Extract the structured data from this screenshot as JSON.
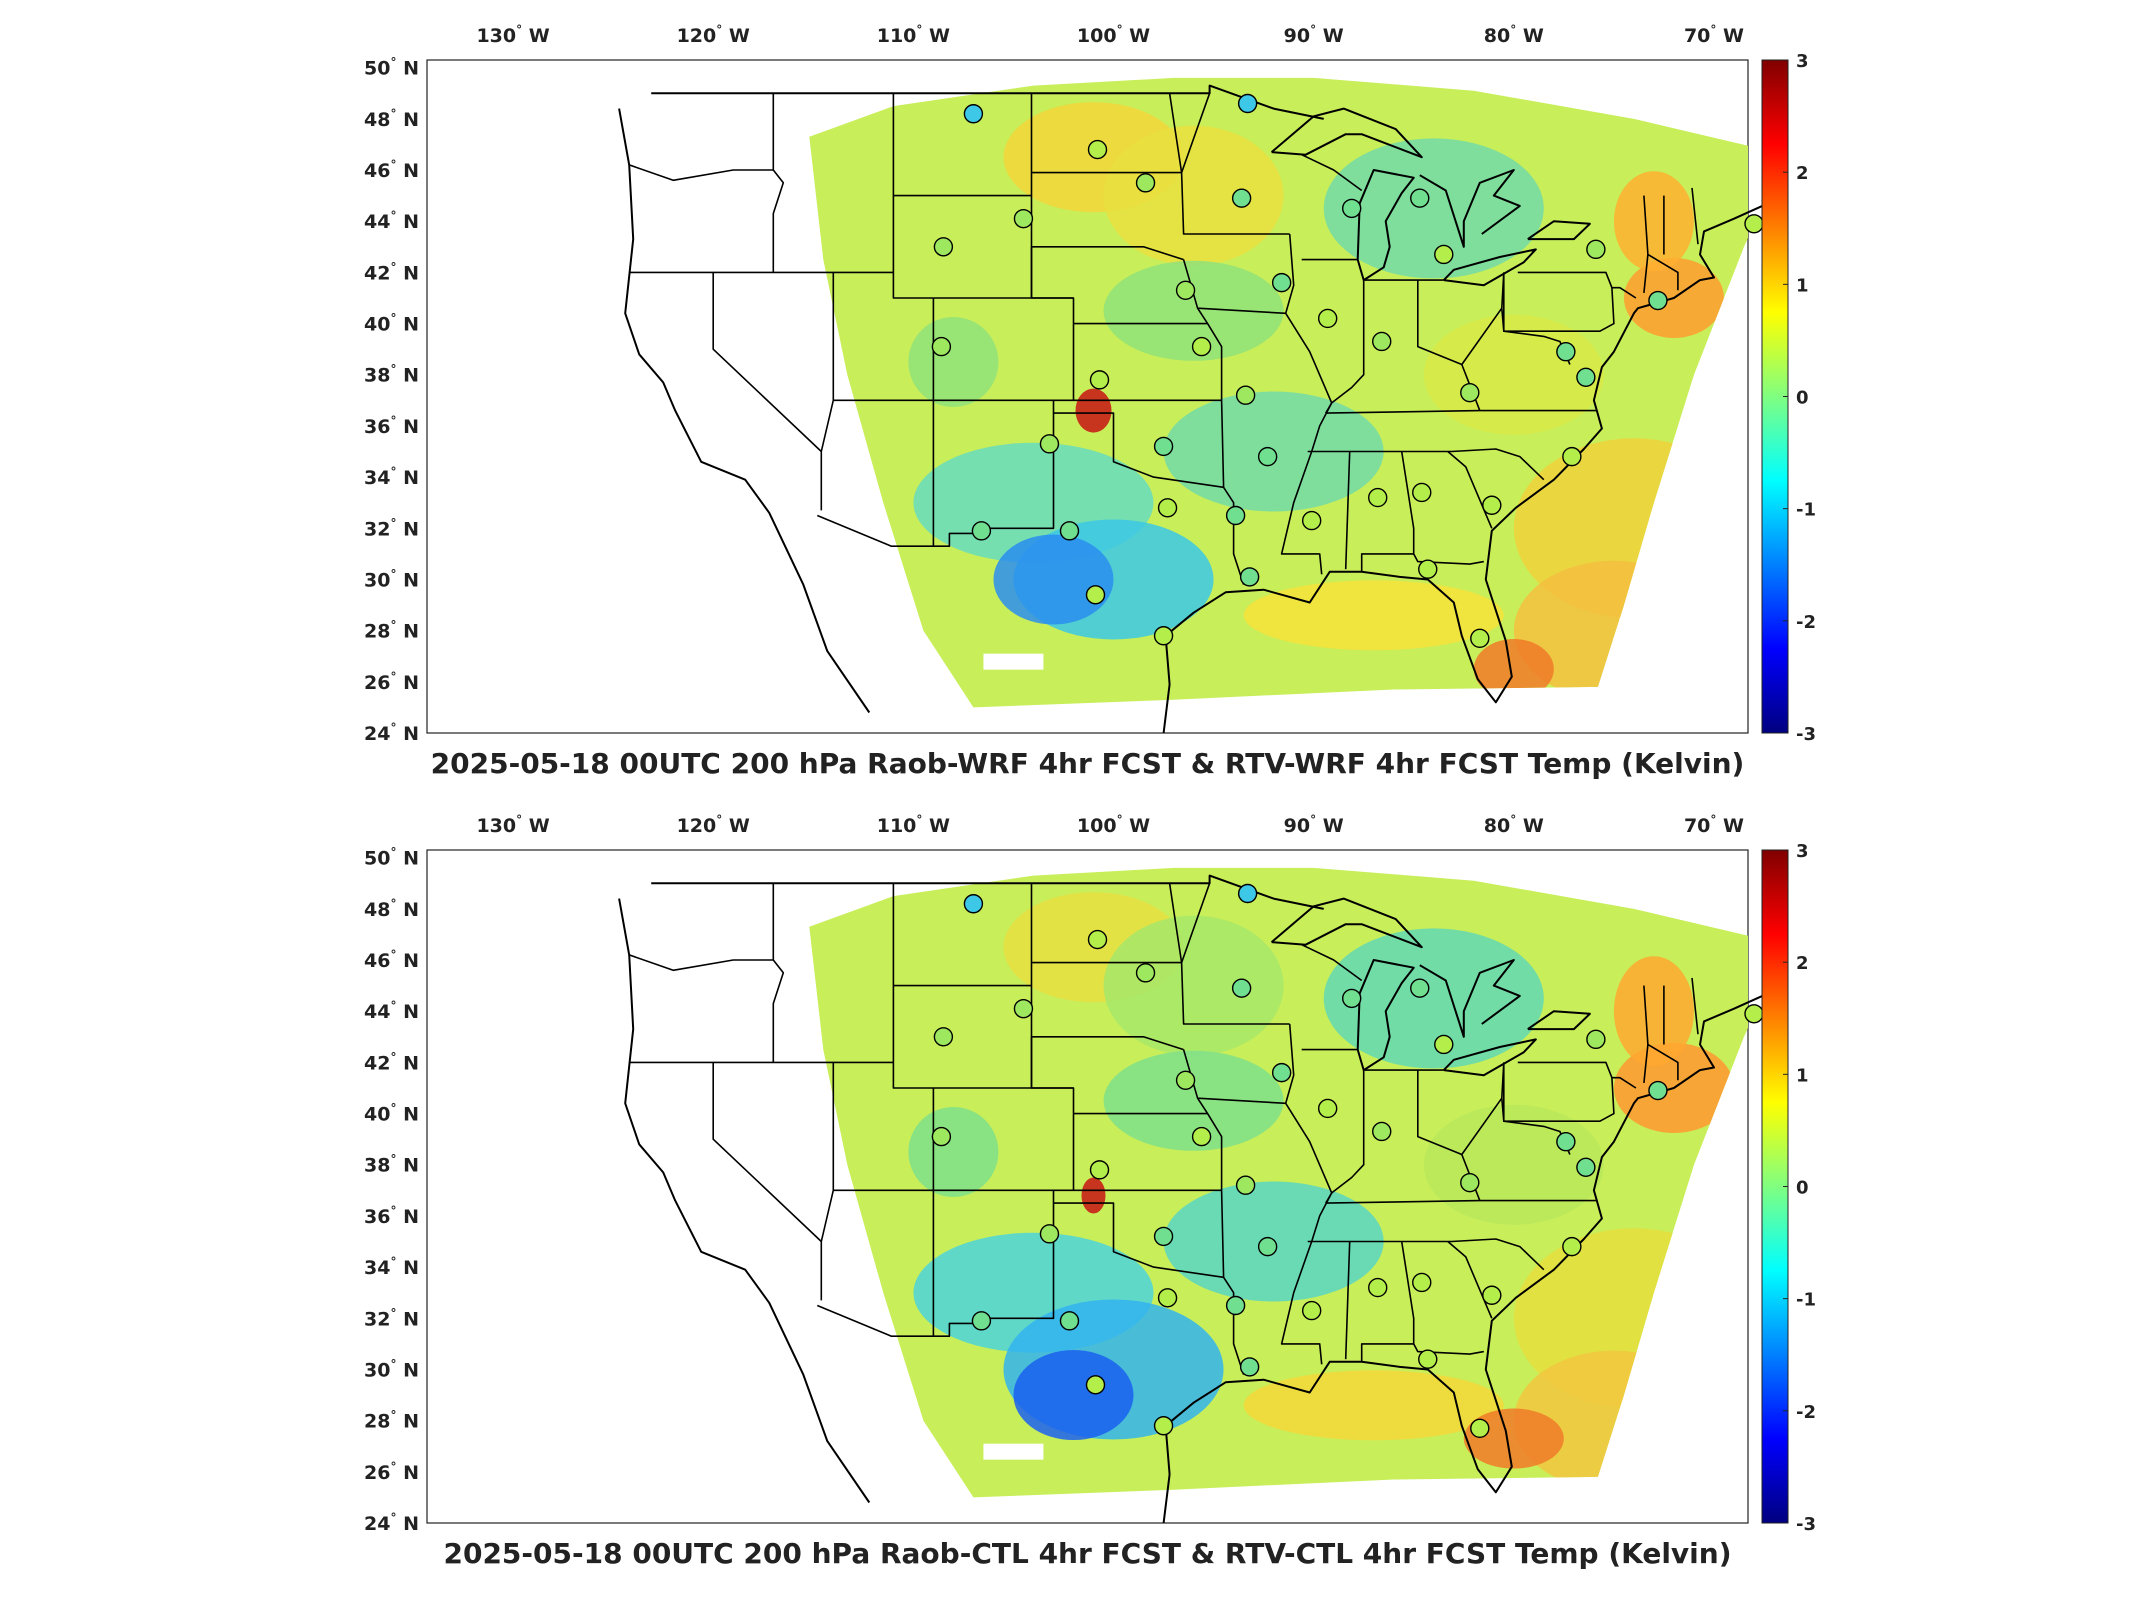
{
  "colorbar": {
    "ticks": [
      "3",
      "2",
      "1",
      "0",
      "-1",
      "-2",
      "-3"
    ],
    "colors": [
      "#800000",
      "#ff0000",
      "#ff8000",
      "#ffff00",
      "#80ff80",
      "#00ffff",
      "#0080ff",
      "#0000ff",
      "#000080"
    ]
  },
  "axes": {
    "lon_labels": [
      "130",
      "120",
      "110",
      "100",
      "90",
      "80",
      "70"
    ],
    "lon_suffix": "W",
    "lat_labels": [
      "50",
      "48",
      "46",
      "44",
      "42",
      "40",
      "38",
      "36",
      "34",
      "32",
      "30",
      "28",
      "26",
      "24"
    ],
    "lat_suffix": "N",
    "degree_symbol": "°"
  },
  "panels": [
    {
      "title": "2025-05-18 00UTC 200 hPa Raob-WRF 4hr FCST & RTV-WRF 4hr FCST Temp (Kelvin)"
    },
    {
      "title": "2025-05-18 00UTC 200 hPa Raob-CTL 4hr FCST & RTV-CTL 4hr FCST Temp (Kelvin)"
    }
  ],
  "stations": [
    {
      "lon": -107,
      "lat": 48.2,
      "color": "#3cc8e6"
    },
    {
      "lon": -93.3,
      "lat": 48.6,
      "color": "#3cc8e6"
    },
    {
      "lon": -100.8,
      "lat": 46.8,
      "color": "#b4ee4a"
    },
    {
      "lon": -98.4,
      "lat": 45.5,
      "color": "#9ee860"
    },
    {
      "lon": -93.6,
      "lat": 44.9,
      "color": "#70e090"
    },
    {
      "lon": -104.5,
      "lat": 44.1,
      "color": "#9ee860"
    },
    {
      "lon": -108.5,
      "lat": 43.0,
      "color": "#9ee860"
    },
    {
      "lon": -88.1,
      "lat": 44.5,
      "color": "#70e090"
    },
    {
      "lon": -84.7,
      "lat": 44.9,
      "color": "#70e090"
    },
    {
      "lon": -83.5,
      "lat": 42.7,
      "color": "#b4ee4a"
    },
    {
      "lon": -91.6,
      "lat": 41.6,
      "color": "#70e090"
    },
    {
      "lon": -96.4,
      "lat": 41.3,
      "color": "#9ee860"
    },
    {
      "lon": -75.9,
      "lat": 42.9,
      "color": "#9ee860"
    },
    {
      "lon": -68.0,
      "lat": 43.9,
      "color": "#b4ee4a"
    },
    {
      "lon": -72.8,
      "lat": 40.9,
      "color": "#70e090"
    },
    {
      "lon": -108.6,
      "lat": 39.1,
      "color": "#9ee860"
    },
    {
      "lon": -100.7,
      "lat": 37.8,
      "color": "#b4ee4a"
    },
    {
      "lon": -95.6,
      "lat": 39.1,
      "color": "#b4ee4a"
    },
    {
      "lon": -89.3,
      "lat": 40.2,
      "color": "#b4ee4a"
    },
    {
      "lon": -86.6,
      "lat": 39.3,
      "color": "#9ee860"
    },
    {
      "lon": -82.2,
      "lat": 37.3,
      "color": "#9ee860"
    },
    {
      "lon": -77.4,
      "lat": 38.9,
      "color": "#70e090"
    },
    {
      "lon": -76.4,
      "lat": 37.9,
      "color": "#70e090"
    },
    {
      "lon": -93.4,
      "lat": 37.2,
      "color": "#9ee860"
    },
    {
      "lon": -103.2,
      "lat": 35.3,
      "color": "#9ee860"
    },
    {
      "lon": -97.5,
      "lat": 35.2,
      "color": "#70e090"
    },
    {
      "lon": -92.3,
      "lat": 34.8,
      "color": "#70e090"
    },
    {
      "lon": -86.8,
      "lat": 33.2,
      "color": "#b4ee4a"
    },
    {
      "lon": -84.6,
      "lat": 33.4,
      "color": "#b4ee4a"
    },
    {
      "lon": -77.1,
      "lat": 34.8,
      "color": "#b4ee4a"
    },
    {
      "lon": -81.1,
      "lat": 32.9,
      "color": "#b4ee4a"
    },
    {
      "lon": -106.6,
      "lat": 31.9,
      "color": "#70e090"
    },
    {
      "lon": -102.2,
      "lat": 31.9,
      "color": "#70e090"
    },
    {
      "lon": -97.3,
      "lat": 32.8,
      "color": "#b4ee4a"
    },
    {
      "lon": -93.9,
      "lat": 32.5,
      "color": "#70e090"
    },
    {
      "lon": -90.1,
      "lat": 32.3,
      "color": "#b4ee4a"
    },
    {
      "lon": -100.9,
      "lat": 29.4,
      "color": "#b4ee4a"
    },
    {
      "lon": -97.5,
      "lat": 27.8,
      "color": "#b4ee4a"
    },
    {
      "lon": -93.2,
      "lat": 30.1,
      "color": "#70e090"
    },
    {
      "lon": -84.3,
      "lat": 30.4,
      "color": "#b4ee4a"
    },
    {
      "lon": -81.7,
      "lat": 27.7,
      "color": "#b4ee4a"
    }
  ]
}
